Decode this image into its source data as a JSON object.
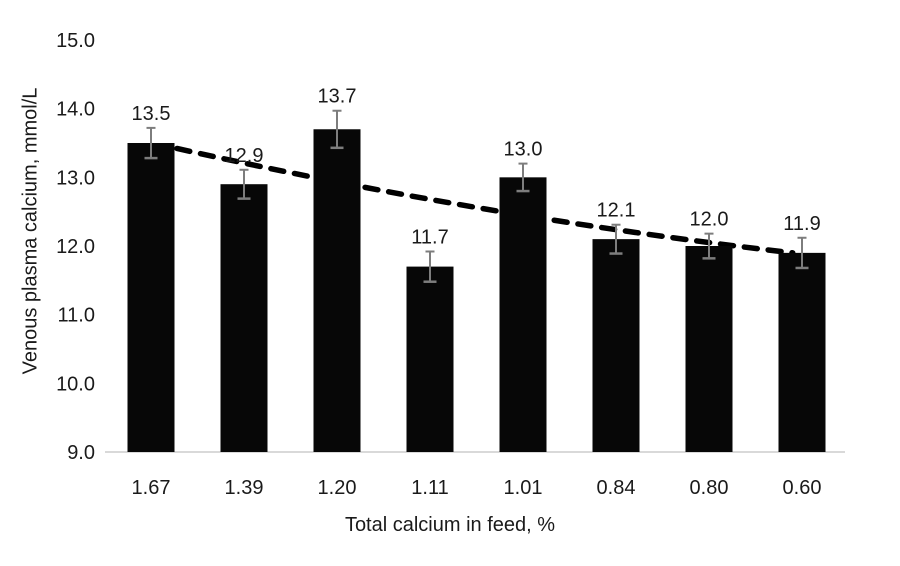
{
  "chart_data": {
    "type": "bar",
    "title": "",
    "xlabel": "Total calcium in feed, %",
    "ylabel": "Venous plasma calcium, mmol/L",
    "categories": [
      "1.67",
      "1.39",
      "1.20",
      "1.11",
      "1.01",
      "0.84",
      "0.80",
      "0.60"
    ],
    "values": [
      13.5,
      12.9,
      13.7,
      11.7,
      13.0,
      12.1,
      12.0,
      11.9
    ],
    "value_labels": [
      "13.5",
      "12.9",
      "13.7",
      "11.7",
      "13.0",
      "12.1",
      "12.0",
      "11.9"
    ],
    "error_bars": [
      0.22,
      0.21,
      0.27,
      0.22,
      0.2,
      0.21,
      0.18,
      0.22
    ],
    "ylim": [
      9.0,
      15.0
    ],
    "yticks": [
      "15.0",
      "14.0",
      "13.0",
      "12.0",
      "11.0",
      "10.0",
      "9.0"
    ],
    "grid": false,
    "legend_position": "none",
    "colors": {
      "bar": "#070707",
      "error_bar": "#7d7d7d",
      "axis_line": "#d9d9d9",
      "text": "#1a1a1a",
      "trendline": "#000000"
    },
    "trendline": {
      "style": "dashed",
      "start": {
        "x_index": 0.28,
        "value": 13.42
      },
      "control": {
        "x_index": 3.59,
        "value": 12.42
      },
      "end": {
        "x_index": 6.9,
        "value": 11.9
      }
    }
  }
}
